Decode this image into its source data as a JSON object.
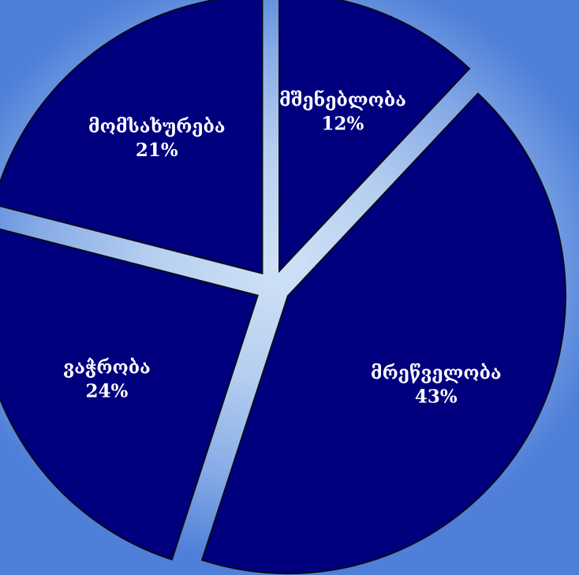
{
  "chart_data": {
    "type": "pie",
    "exploded": true,
    "slices": [
      {
        "label": "მშენებლობა",
        "value": 12,
        "value_label": "12%"
      },
      {
        "label": "მრეწველობა",
        "value": 43,
        "value_label": "43%"
      },
      {
        "label": "ვაჭრობა",
        "value": 24,
        "value_label": "24%"
      },
      {
        "label": "მომსახურება",
        "value": 21,
        "value_label": "21%"
      }
    ],
    "colors": {
      "slice": "#00007f",
      "outline": "#0a0a1e"
    }
  }
}
